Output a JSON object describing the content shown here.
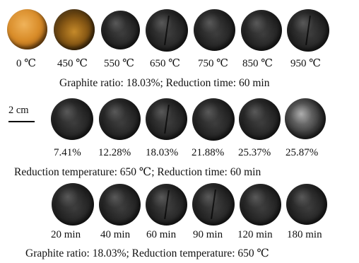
{
  "rows": [
    {
      "labels": [
        "0 ℃",
        "450 ℃",
        "550 ℃",
        "650 ℃",
        "750 ℃",
        "850 ℃",
        "950 ℃"
      ],
      "caption": "Graphite ratio: 18.03%; Reduction time: 60 min"
    },
    {
      "labels": [
        "7.41%",
        "12.28%",
        "18.03%",
        "21.88%",
        "25.37%",
        "25.87%"
      ],
      "caption": "Reduction temperature: 650 ℃; Reduction time: 60 min"
    },
    {
      "labels": [
        "20 min",
        "40 min",
        "60 min",
        "90 min",
        "120 min",
        "180 min"
      ],
      "caption": "Graphite ratio: 18.03%; Reduction temperature: 650 ℃"
    }
  ],
  "scale_label": "2 cm"
}
